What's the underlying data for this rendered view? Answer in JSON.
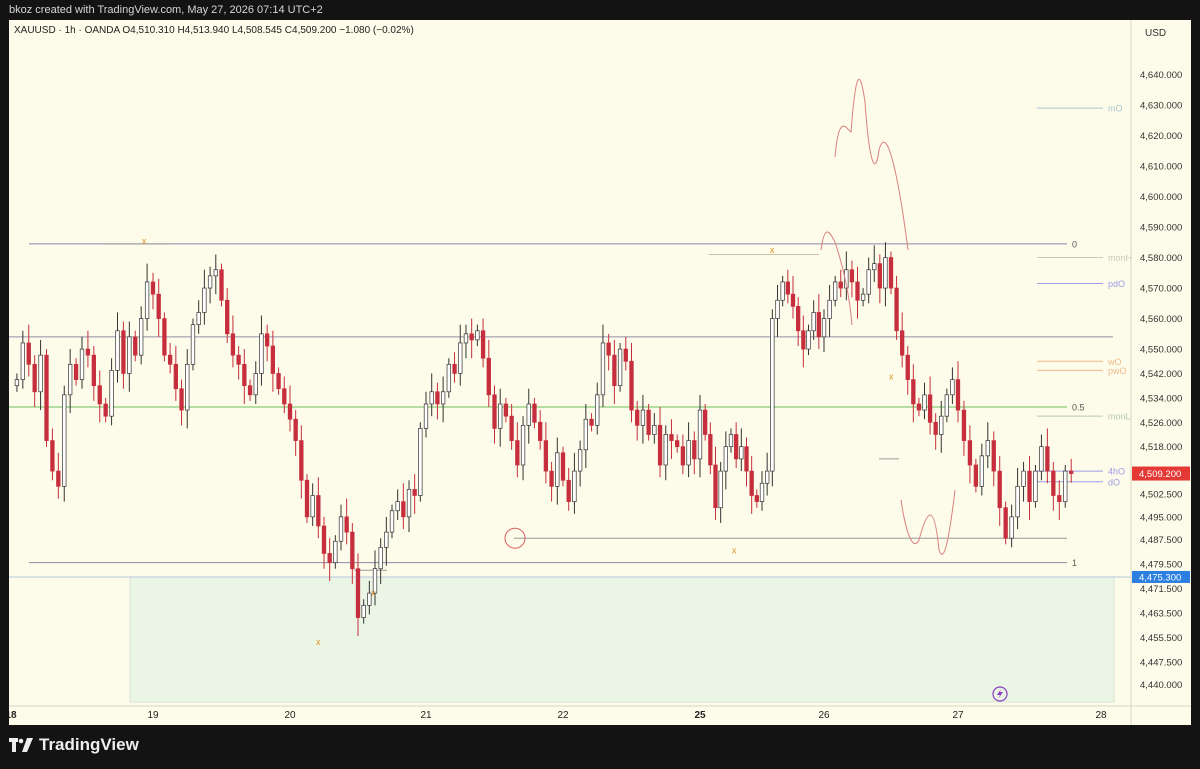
{
  "header": {
    "credit": "bkoz created with TradingView.com, May 27, 2026 07:14 UTC+2"
  },
  "legend": {
    "symbol": "XAUUSD",
    "interval": "1h",
    "broker": "OANDA",
    "open": "O4,510.310",
    "high": "H4,513.940",
    "low": "L4,508.545",
    "close": "C4,509.200",
    "change": "−1.080 (−0.02%)"
  },
  "footer": {
    "brand": "TradingView"
  },
  "colors": {
    "up": "#ffffff",
    "down": "#c72e3d",
    "background": "#fdfbe9",
    "price_tag": "#e53935",
    "marker_tag": "#2a7fe0",
    "zone": "#eaf5e6"
  },
  "chart_data": {
    "type": "candlestick",
    "title": "",
    "currency_label": "USD",
    "y_range": [
      4433,
      4650
    ],
    "y_ticks": [
      "4,440.000",
      "4,447.500",
      "4,455.500",
      "4,463.500",
      "4,471.500",
      "4,479.500",
      "4,487.500",
      "4,495.000",
      "4,502.500",
      "4,510.000",
      "4,518.000",
      "4,526.000",
      "4,534.000",
      "4,542.000",
      "4,550.000",
      "4,560.000",
      "4,570.000",
      "4,580.000",
      "4,590.000",
      "4,600.000",
      "4,610.000",
      "4,620.000",
      "4,630.000",
      "4,640.000"
    ],
    "x_ticks": [
      {
        "label": "18",
        "day": 0
      },
      {
        "label": "19",
        "day": 1
      },
      {
        "label": "20",
        "day": 2
      },
      {
        "label": "21",
        "day": 3
      },
      {
        "label": "22",
        "day": 4
      },
      {
        "label": "25",
        "day": 5
      },
      {
        "label": "26",
        "day": 6
      },
      {
        "label": "27",
        "day": 7
      },
      {
        "label": "28",
        "day": 8
      }
    ],
    "current_price": "4,509.200",
    "marker_price": "4,475.300",
    "candles_day_start": 0,
    "candles_per_day": 24,
    "candles_start_hour": 1,
    "candle_close": [
      4540,
      4552,
      4545,
      4536,
      4548,
      4520,
      4510,
      4505,
      4535,
      4545,
      4540,
      4550,
      4548,
      4538,
      4532,
      4528,
      4543,
      4556,
      4542,
      4554,
      4548,
      4560,
      4572,
      4568,
      4560,
      4548,
      4545,
      4537,
      4530,
      4545,
      4558,
      4562,
      4570,
      4574,
      4576,
      4566,
      4555,
      4548,
      4545,
      4538,
      4535,
      4542,
      4555,
      4551,
      4542,
      4537,
      4532,
      4527,
      4520,
      4507,
      4495,
      4502,
      4492,
      4483,
      4480,
      4487,
      4495,
      4490,
      4478,
      4462,
      4466,
      4470,
      4478,
      4485,
      4490,
      4497,
      4500,
      4495,
      4504,
      4502,
      4524,
      4532,
      4536,
      4532,
      4536,
      4545,
      4542,
      4552,
      4555,
      4553,
      4556,
      4547,
      4535,
      4524,
      4532,
      4528,
      4520,
      4512,
      4525,
      4532,
      4526,
      4520,
      4510,
      4505,
      4516,
      4507,
      4500,
      4510,
      4517,
      4527,
      4525,
      4535,
      4552,
      4548,
      4538,
      4550,
      4546,
      4530,
      4525,
      4530,
      4522,
      4525,
      4512,
      4522,
      4520,
      4518,
      4512,
      4520,
      4514,
      4530,
      4522,
      4512,
      4498,
      4510,
      4518,
      4522,
      4514,
      4518,
      4510,
      4502,
      4500,
      4506,
      4510,
      4560,
      4566,
      4572,
      4568,
      4564,
      4556,
      4550,
      4556,
      4562,
      4554,
      4560,
      4566,
      4572,
      4570,
      4576,
      4572,
      4566,
      4568,
      4576,
      4578,
      4570,
      4580,
      4570,
      4556,
      4548,
      4540,
      4532,
      4530,
      4535,
      4526,
      4522,
      4528,
      4535,
      4540,
      4530,
      4520,
      4512,
      4505,
      4515,
      4520,
      4510,
      4498,
      4488,
      4495,
      4505,
      4510,
      4500,
      4510,
      4518,
      4510,
      4502,
      4500,
      4510,
      4509.2
    ],
    "annotations": {
      "fib_levels": [
        {
          "label": "0",
          "price": 4584.5
        },
        {
          "label": "0.5",
          "price": 4531
        },
        {
          "label": "1",
          "price": 4480
        }
      ],
      "ref_lines": [
        {
          "label": "mO",
          "price": 4629,
          "color": "#a7c7d3"
        },
        {
          "label": "monH",
          "price": 4580,
          "color": "#c9c9b8"
        },
        {
          "label": "pdO",
          "price": 4571.5,
          "color": "#9d9de8"
        },
        {
          "label": "wO",
          "price": 4546,
          "color": "#f1b98c"
        },
        {
          "label": "pwO",
          "price": 4543,
          "color": "#f1b98c"
        },
        {
          "label": "monL",
          "price": 4528,
          "color": "#b5c8b5"
        },
        {
          "label": "4hO",
          "price": 4510,
          "color": "#9d9de8"
        },
        {
          "label": "dO",
          "price": 4506.5,
          "color": "#9d9de8"
        }
      ],
      "x_markers": [
        "x",
        "x",
        "x",
        "x",
        "x",
        "x"
      ],
      "horizontal_lines": [
        {
          "price": 4584.5,
          "color": "#8a8aa8"
        },
        {
          "price": 4554,
          "color": "#8e8eaa"
        },
        {
          "price": 4531,
          "color": "#6bbf59"
        },
        {
          "price": 4480,
          "color": "#8a8aa8"
        },
        {
          "price": 4475.3,
          "color": "#b8c9e0"
        }
      ]
    }
  }
}
